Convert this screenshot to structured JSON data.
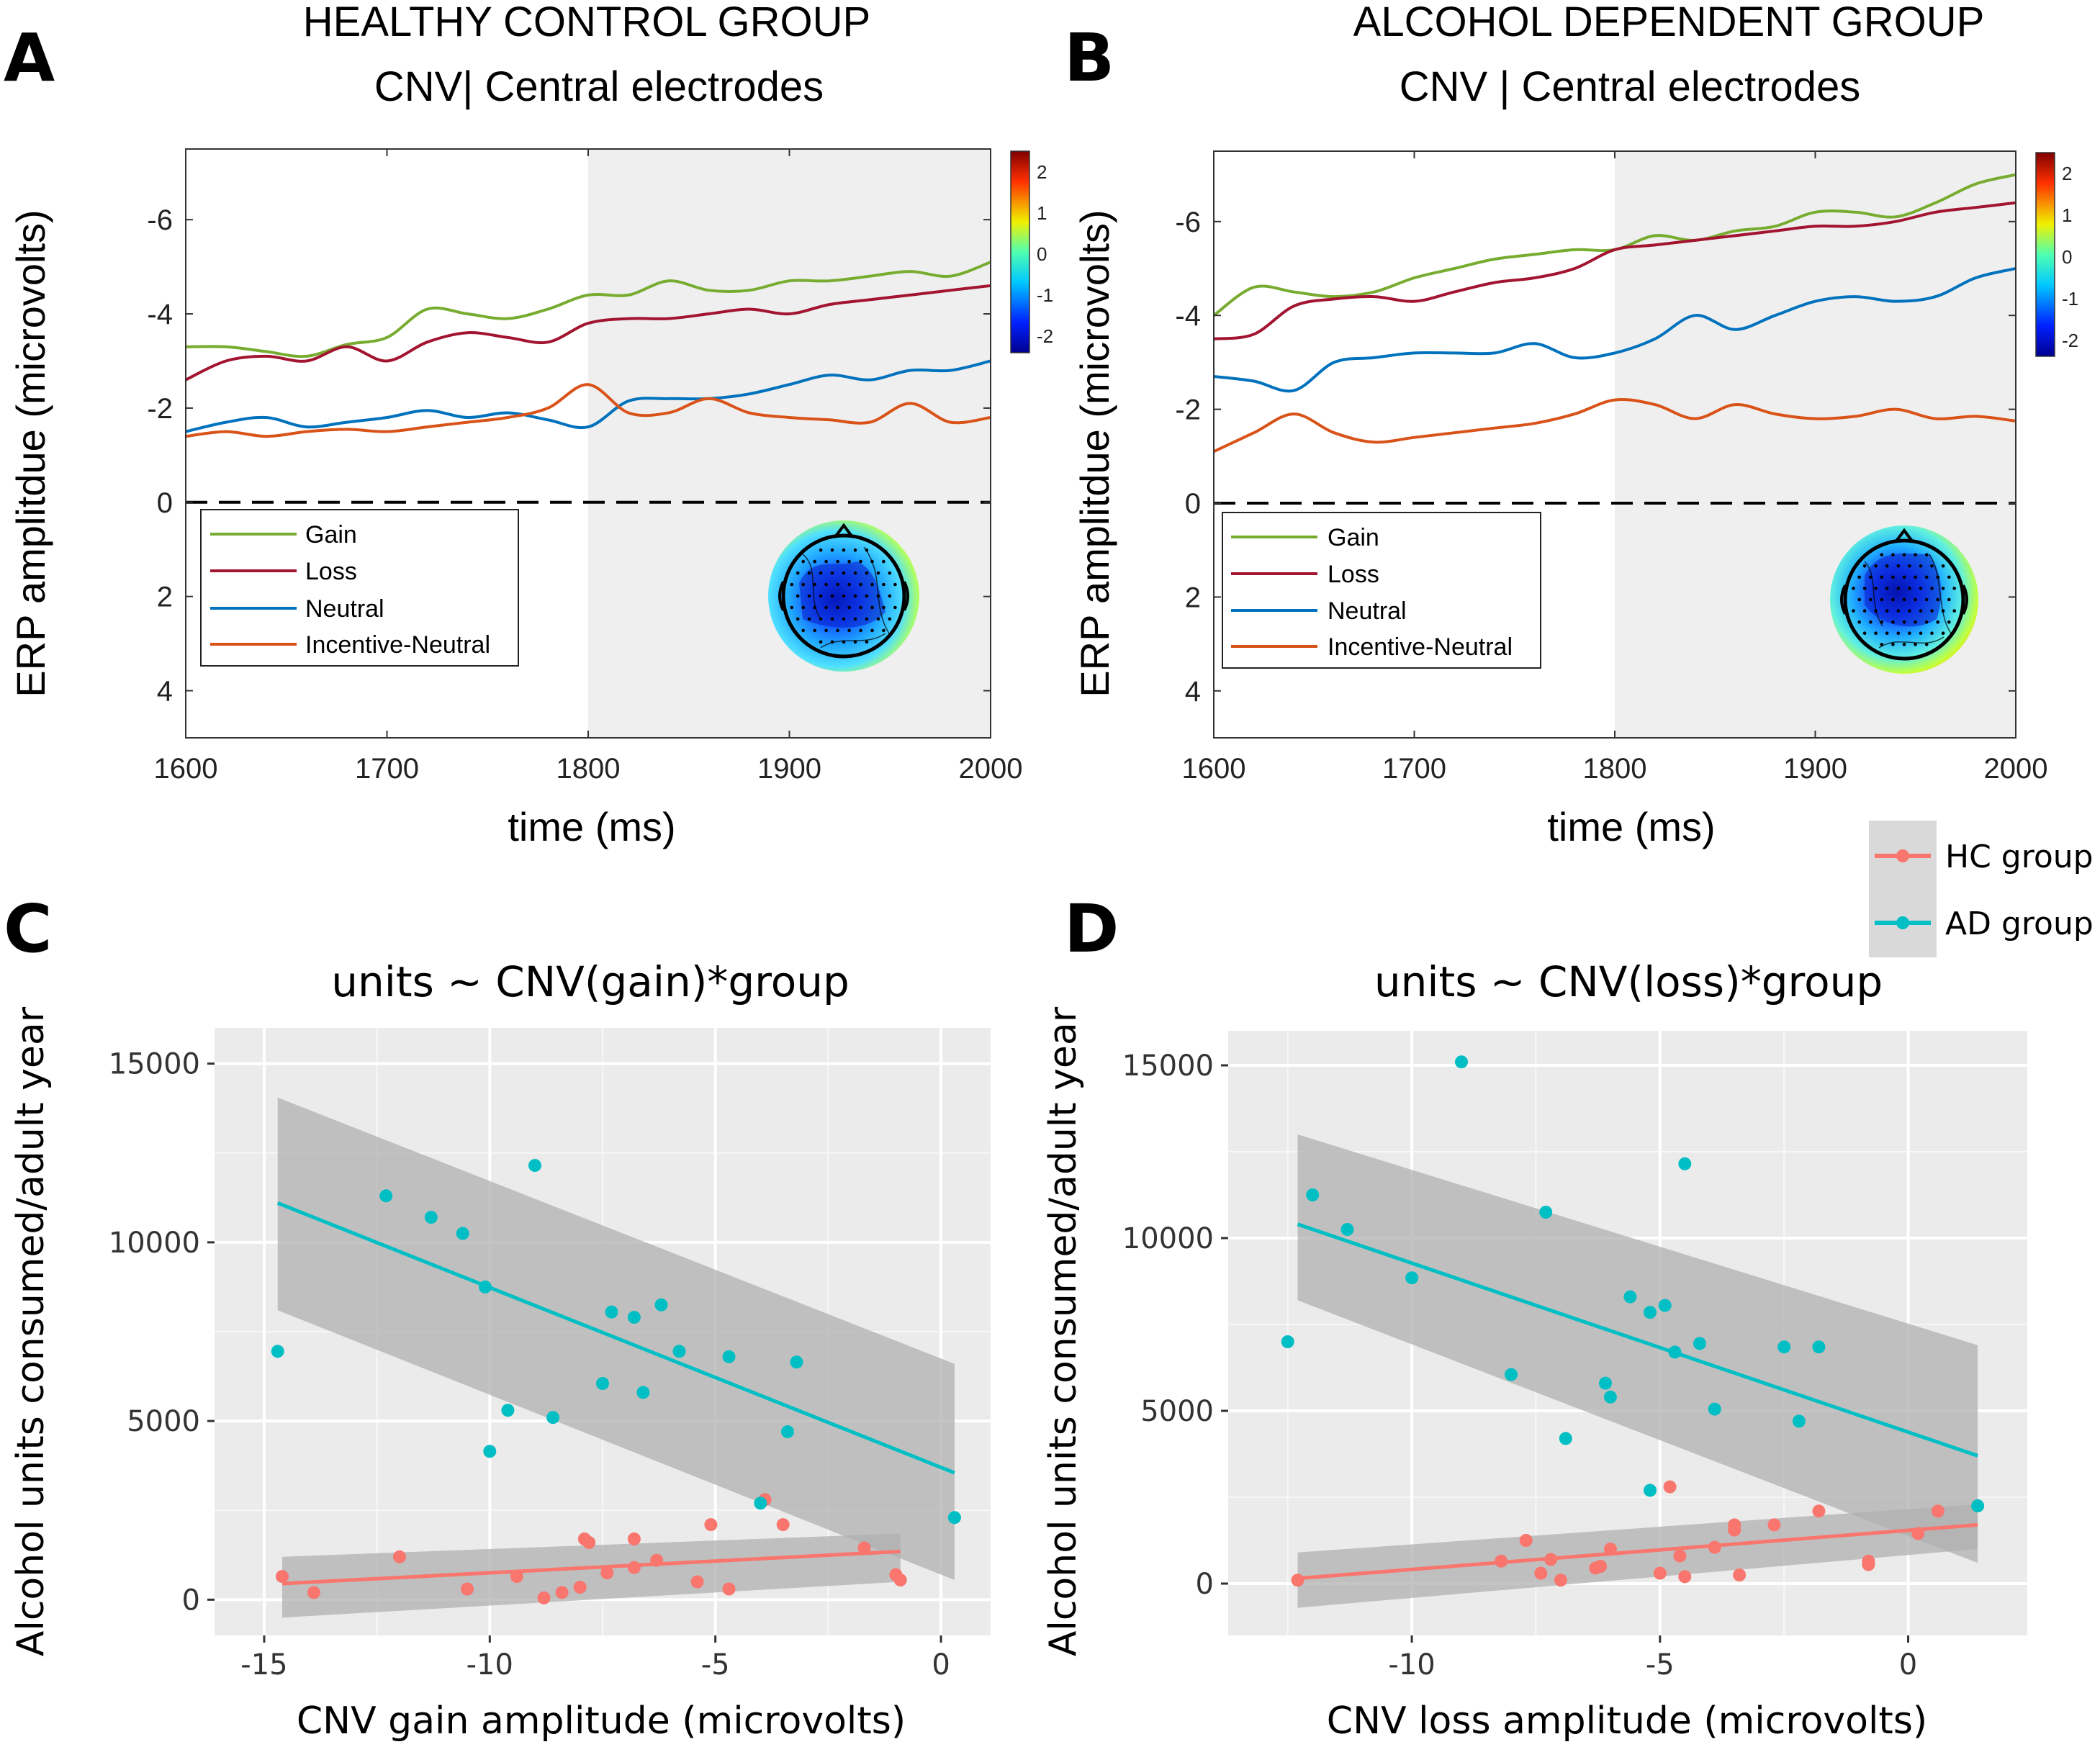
{
  "panels": {
    "A": {
      "letter": "A",
      "title1": "HEALTHY CONTROL GROUP",
      "title2": "CNV| Central electrodes"
    },
    "B": {
      "letter": "B",
      "title1": "ALCOHOL DEPENDENT GROUP",
      "title2": "CNV | Central electrodes"
    },
    "C": {
      "letter": "C",
      "title": "units ~ CNV(gain)*group"
    },
    "D": {
      "letter": "D",
      "title": "units ~ CNV(loss)*group"
    }
  },
  "erp_axes": {
    "ylabel": "ERP amplitdue (microvolts)",
    "xlabel": "time (ms)",
    "xlim": [
      1600,
      2000
    ],
    "ylim": [
      -7.5,
      5
    ],
    "y_reversed": true,
    "xticks": [
      1600,
      1700,
      1800,
      1900,
      2000
    ],
    "yticks": [
      -6,
      -4,
      -2,
      0,
      2,
      4
    ],
    "ytick_labels": [
      "-6",
      "-4",
      "-2",
      "0",
      "2",
      "4"
    ],
    "shade_from": 1800,
    "legend": [
      "Gain",
      "Loss",
      "Neutral",
      "Incentive-Neutral"
    ],
    "colorbar_ticks": [
      "2",
      "1",
      "0",
      "-1",
      "-2"
    ]
  },
  "scatter_axes": {
    "ylabel": "Alcohol units consumed/adult year",
    "yticks": [
      0,
      5000,
      10000,
      15000
    ],
    "ytick_labels": [
      "0",
      "5000",
      "10000",
      "15000"
    ]
  },
  "legend_groups": {
    "hc": "HC group",
    "ad": "AD group"
  },
  "colors": {
    "gain": "#77ac30",
    "loss": "#a2142f",
    "neutral": "#0072bd",
    "incentive": "#d95319",
    "hc": "#f8766d",
    "ad": "#00bfc4",
    "panel_bg": "#ebebeb",
    "ribbon": "#b0b0b0"
  },
  "chart_data": [
    {
      "type": "line",
      "panel": "A",
      "title": "HEALTHY CONTROL GROUP — CNV| Central electrodes",
      "xlabel": "time (ms)",
      "ylabel": "ERP amplitdue (microvolts)",
      "x": [
        1600,
        1620,
        1640,
        1660,
        1680,
        1700,
        1720,
        1740,
        1760,
        1780,
        1800,
        1820,
        1840,
        1860,
        1880,
        1900,
        1920,
        1940,
        1960,
        1980,
        2000
      ],
      "series": [
        {
          "name": "Gain",
          "values": [
            -3.3,
            -3.3,
            -3.2,
            -3.1,
            -3.35,
            -3.5,
            -4.1,
            -4.0,
            -3.9,
            -4.1,
            -4.4,
            -4.4,
            -4.7,
            -4.5,
            -4.5,
            -4.7,
            -4.7,
            -4.8,
            -4.9,
            -4.8,
            -5.1
          ]
        },
        {
          "name": "Loss",
          "values": [
            -2.6,
            -3.0,
            -3.1,
            -3.0,
            -3.3,
            -3.0,
            -3.4,
            -3.6,
            -3.5,
            -3.4,
            -3.8,
            -3.9,
            -3.9,
            -4.0,
            -4.1,
            -4.0,
            -4.2,
            -4.3,
            -4.4,
            -4.5,
            -4.6
          ]
        },
        {
          "name": "Neutral",
          "values": [
            -1.5,
            -1.7,
            -1.8,
            -1.6,
            -1.7,
            -1.8,
            -1.95,
            -1.8,
            -1.9,
            -1.75,
            -1.6,
            -2.15,
            -2.2,
            -2.2,
            -2.3,
            -2.5,
            -2.7,
            -2.6,
            -2.8,
            -2.8,
            -3.0
          ]
        },
        {
          "name": "Incentive-Neutral",
          "values": [
            -1.4,
            -1.5,
            -1.4,
            -1.5,
            -1.55,
            -1.5,
            -1.6,
            -1.7,
            -1.8,
            -2.0,
            -2.5,
            -1.9,
            -1.9,
            -2.2,
            -1.9,
            -1.8,
            -1.75,
            -1.7,
            -2.1,
            -1.7,
            -1.8
          ]
        }
      ]
    },
    {
      "type": "line",
      "panel": "B",
      "title": "ALCOHOL DEPENDENT GROUP — CNV | Central electrodes",
      "xlabel": "time (ms)",
      "ylabel": "ERP amplitdue (microvolts)",
      "x": [
        1600,
        1620,
        1640,
        1660,
        1680,
        1700,
        1720,
        1740,
        1760,
        1780,
        1800,
        1820,
        1840,
        1860,
        1880,
        1900,
        1920,
        1940,
        1960,
        1980,
        2000
      ],
      "series": [
        {
          "name": "Gain",
          "values": [
            -4.0,
            -4.6,
            -4.5,
            -4.4,
            -4.5,
            -4.8,
            -5.0,
            -5.2,
            -5.3,
            -5.4,
            -5.4,
            -5.7,
            -5.6,
            -5.8,
            -5.9,
            -6.2,
            -6.2,
            -6.1,
            -6.4,
            -6.8,
            -7.0
          ]
        },
        {
          "name": "Loss",
          "values": [
            -3.5,
            -3.6,
            -4.2,
            -4.35,
            -4.4,
            -4.3,
            -4.5,
            -4.7,
            -4.8,
            -5.0,
            -5.4,
            -5.5,
            -5.6,
            -5.7,
            -5.8,
            -5.9,
            -5.9,
            -6.0,
            -6.2,
            -6.3,
            -6.4
          ]
        },
        {
          "name": "Neutral",
          "values": [
            -2.7,
            -2.6,
            -2.4,
            -3.0,
            -3.1,
            -3.2,
            -3.2,
            -3.2,
            -3.4,
            -3.1,
            -3.2,
            -3.5,
            -4.0,
            -3.7,
            -4.0,
            -4.3,
            -4.4,
            -4.3,
            -4.4,
            -4.8,
            -5.0
          ]
        },
        {
          "name": "Incentive-Neutral",
          "values": [
            -1.1,
            -1.5,
            -1.9,
            -1.5,
            -1.3,
            -1.4,
            -1.5,
            -1.6,
            -1.7,
            -1.9,
            -2.2,
            -2.1,
            -1.8,
            -2.1,
            -1.9,
            -1.8,
            -1.85,
            -2.0,
            -1.8,
            -1.85,
            -1.75
          ]
        }
      ]
    },
    {
      "type": "scatter",
      "panel": "C",
      "title": "units ~ CNV(gain)*group",
      "xlabel": "CNV gain amplitude (microvolts)",
      "ylabel": "Alcohol units consumed/adult year",
      "xlim": [
        -16.1,
        1.1
      ],
      "ylim": [
        -1000,
        16000
      ],
      "xticks": [
        -15,
        -10,
        -5,
        0
      ],
      "yticks": [
        0,
        5000,
        10000,
        15000
      ],
      "series": [
        {
          "name": "HC group",
          "x": [
            -14.6,
            -13.9,
            -12.0,
            -10.5,
            -9.4,
            -8.8,
            -8.4,
            -8.0,
            -7.9,
            -7.8,
            -7.4,
            -6.8,
            -6.8,
            -6.3,
            -5.4,
            -5.1,
            -4.7,
            -3.9,
            -3.5,
            -1.7,
            -1.0,
            -0.9
          ],
          "y": [
            650,
            200,
            1200,
            300,
            650,
            50,
            200,
            350,
            1700,
            1600,
            750,
            900,
            1700,
            1100,
            500,
            2100,
            300,
            2800,
            2100,
            1450,
            700,
            550
          ],
          "fit": {
            "x0": -14.6,
            "x1": -0.9,
            "y0": 450,
            "y1": 1350,
            "ribbon_lo0": -500,
            "ribbon_hi0": 1200,
            "ribbon_lo1": 500,
            "ribbon_hi1": 1850
          }
        },
        {
          "name": "AD group",
          "x": [
            -14.7,
            -12.3,
            -11.3,
            -10.6,
            -10.1,
            -10.0,
            -9.6,
            -9.0,
            -8.6,
            -7.5,
            -7.3,
            -6.8,
            -6.6,
            -6.2,
            -5.8,
            -4.7,
            -4.0,
            -3.4,
            -3.2,
            0.3
          ],
          "y": [
            6950,
            11300,
            10700,
            10250,
            8750,
            4150,
            5300,
            12150,
            5100,
            6050,
            8050,
            7900,
            5800,
            8250,
            6950,
            6800,
            2700,
            4700,
            6650,
            2300
          ],
          "fit": {
            "x0": -14.7,
            "x1": 0.3,
            "y0": 11100,
            "y1": 3550,
            "ribbon_lo0": 8100,
            "ribbon_hi0": 14050,
            "ribbon_lo1": 550,
            "ribbon_hi1": 6600
          }
        }
      ]
    },
    {
      "type": "scatter",
      "panel": "D",
      "title": "units ~ CNV(loss)*group",
      "xlabel": "CNV loss amplitude (microvolts)",
      "ylabel": "Alcohol units consumed/adult year",
      "xlim": [
        -13.7,
        2.4
      ],
      "ylim": [
        -1500,
        16000
      ],
      "xticks": [
        -10,
        -5,
        0
      ],
      "yticks": [
        0,
        5000,
        10000,
        15000
      ],
      "series": [
        {
          "name": "HC group",
          "x": [
            -12.3,
            -8.2,
            -7.7,
            -7.4,
            -7.2,
            -7.0,
            -6.3,
            -6.2,
            -6.0,
            -5.0,
            -4.8,
            -4.6,
            -4.5,
            -3.9,
            -3.5,
            -3.5,
            -3.4,
            -2.7,
            -1.8,
            -0.8,
            -0.8,
            0.2,
            0.6
          ],
          "y": [
            100,
            650,
            1250,
            300,
            700,
            100,
            450,
            500,
            1000,
            300,
            2800,
            800,
            200,
            1050,
            1700,
            1550,
            250,
            1700,
            2100,
            550,
            650,
            1450,
            2100
          ],
          "fit": {
            "x0": -12.3,
            "x1": 1.4,
            "y0": 150,
            "y1": 1700,
            "ribbon_lo0": -700,
            "ribbon_hi0": 900,
            "ribbon_lo1": 1000,
            "ribbon_hi1": 2300
          }
        },
        {
          "name": "AD group",
          "x": [
            -12.5,
            -12.0,
            -11.3,
            -10.0,
            -9.0,
            -8.0,
            -7.3,
            -6.9,
            -6.1,
            -6.0,
            -5.6,
            -5.2,
            -5.2,
            -4.9,
            -4.7,
            -4.5,
            -4.2,
            -3.9,
            -2.5,
            -2.2,
            -1.8,
            1.4
          ],
          "y": [
            7000,
            11250,
            10250,
            8850,
            15100,
            6050,
            10750,
            4200,
            5800,
            5400,
            8300,
            2700,
            7850,
            8050,
            6700,
            12150,
            6950,
            5050,
            6850,
            4700,
            6850,
            2250
          ],
          "fit": {
            "x0": -12.3,
            "x1": 1.4,
            "y0": 10400,
            "y1": 3700,
            "ribbon_lo0": 8200,
            "ribbon_hi0": 13000,
            "ribbon_lo1": 600,
            "ribbon_hi1": 6900
          }
        }
      ]
    }
  ]
}
